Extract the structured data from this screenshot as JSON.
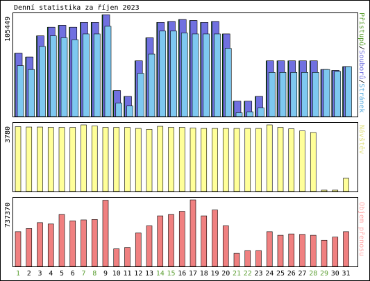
{
  "title": "Denní statistika za říjen 2023",
  "chart_data": [
    {
      "type": "bar",
      "panel": "top",
      "axis_max_label": "105449",
      "right_labels": [
        {
          "text": "Přístupů",
          "color": "#5a9e30"
        },
        {
          "text": "/",
          "color": "#000000"
        },
        {
          "text": "Souborů",
          "color": "#7070e0"
        },
        {
          "text": "/",
          "color": "#000000"
        },
        {
          "text": "Stránek",
          "color": "#55aadd"
        }
      ],
      "ymax": 105449,
      "categories": [
        "1",
        "2",
        "3",
        "4",
        "5",
        "6",
        "7",
        "8",
        "9",
        "10",
        "11",
        "12",
        "13",
        "14",
        "15",
        "16",
        "17",
        "18",
        "19",
        "20",
        "21",
        "22",
        "23",
        "24",
        "25",
        "26",
        "27",
        "28",
        "29",
        "30",
        "31"
      ],
      "series": [
        {
          "name": "Přístupů",
          "color": "#008000",
          "values": [
            66000,
            62000,
            84000,
            93000,
            95000,
            93000,
            98000,
            98000,
            106000,
            27000,
            21000,
            58000,
            82000,
            98000,
            99000,
            101000,
            100000,
            98000,
            99000,
            86000,
            16000,
            16000,
            21000,
            58000,
            58000,
            58000,
            58000,
            58000,
            49000,
            48000,
            52000
          ]
        },
        {
          "name": "Souborů",
          "color": "#7070e0",
          "values": [
            66000,
            62000,
            84000,
            93000,
            95000,
            93000,
            98000,
            98000,
            106000,
            27000,
            21000,
            58000,
            82000,
            98000,
            99000,
            101000,
            100000,
            98000,
            99000,
            86000,
            16000,
            16000,
            21000,
            58000,
            58000,
            58000,
            58000,
            58000,
            49000,
            48000,
            52000
          ]
        },
        {
          "name": "Stránek",
          "color": "#7ec8f0",
          "values": [
            53000,
            49000,
            73000,
            84000,
            82000,
            80000,
            86000,
            86000,
            94000,
            14000,
            11000,
            45000,
            65000,
            89000,
            89000,
            87000,
            86000,
            86000,
            86000,
            71000,
            4000,
            5000,
            9000,
            46000,
            46000,
            46000,
            46000,
            46000,
            49000,
            47000,
            52000
          ]
        }
      ]
    },
    {
      "type": "bar",
      "panel": "middle",
      "axis_max_label": "3780",
      "right_labels": [
        {
          "text": "Návštěv",
          "color": "#e0e080"
        }
      ],
      "ymax": 3780,
      "categories": [
        "1",
        "2",
        "3",
        "4",
        "5",
        "6",
        "7",
        "8",
        "9",
        "10",
        "11",
        "12",
        "13",
        "14",
        "15",
        "16",
        "17",
        "18",
        "19",
        "20",
        "21",
        "22",
        "23",
        "24",
        "25",
        "26",
        "27",
        "28",
        "29",
        "30",
        "31"
      ],
      "series": [
        {
          "name": "Návštěv",
          "color": "#ffff99",
          "values": [
            3680,
            3660,
            3660,
            3640,
            3640,
            3640,
            3780,
            3720,
            3640,
            3640,
            3640,
            3580,
            3530,
            3700,
            3640,
            3640,
            3600,
            3580,
            3580,
            3580,
            3580,
            3580,
            3580,
            3780,
            3640,
            3560,
            3440,
            3350,
            80,
            80,
            750
          ]
        }
      ]
    },
    {
      "type": "bar",
      "panel": "bottom",
      "axis_max_label": "737370",
      "right_labels": [
        {
          "text": "Objem přenosu",
          "color": "#ffaaaa"
        }
      ],
      "ymax": 737370,
      "categories": [
        "1",
        "2",
        "3",
        "4",
        "5",
        "6",
        "7",
        "8",
        "9",
        "10",
        "11",
        "12",
        "13",
        "14",
        "15",
        "16",
        "17",
        "18",
        "19",
        "20",
        "21",
        "22",
        "23",
        "24",
        "25",
        "26",
        "27",
        "28",
        "29",
        "30",
        "31"
      ],
      "series": [
        {
          "name": "Objem přenosu",
          "color": "#f08080",
          "values": [
            385000,
            420000,
            485000,
            470000,
            575000,
            505000,
            515000,
            520000,
            733000,
            195000,
            210000,
            370000,
            450000,
            560000,
            575000,
            610000,
            737000,
            560000,
            625000,
            450000,
            145000,
            175000,
            175000,
            385000,
            345000,
            360000,
            355000,
            345000,
            290000,
            325000,
            385000
          ]
        }
      ]
    }
  ],
  "x_labels": [
    {
      "text": "1",
      "color": "#5a9e30"
    },
    {
      "text": "2",
      "color": "#000000"
    },
    {
      "text": "3",
      "color": "#000000"
    },
    {
      "text": "4",
      "color": "#000000"
    },
    {
      "text": "5",
      "color": "#000000"
    },
    {
      "text": "6",
      "color": "#000000"
    },
    {
      "text": "7",
      "color": "#5a9e30"
    },
    {
      "text": "8",
      "color": "#5a9e30"
    },
    {
      "text": "9",
      "color": "#000000"
    },
    {
      "text": "10",
      "color": "#000000"
    },
    {
      "text": "11",
      "color": "#000000"
    },
    {
      "text": "12",
      "color": "#000000"
    },
    {
      "text": "13",
      "color": "#000000"
    },
    {
      "text": "14",
      "color": "#5a9e30"
    },
    {
      "text": "15",
      "color": "#5a9e30"
    },
    {
      "text": "16",
      "color": "#000000"
    },
    {
      "text": "17",
      "color": "#000000"
    },
    {
      "text": "18",
      "color": "#000000"
    },
    {
      "text": "19",
      "color": "#000000"
    },
    {
      "text": "20",
      "color": "#000000"
    },
    {
      "text": "21",
      "color": "#5a9e30"
    },
    {
      "text": "22",
      "color": "#5a9e30"
    },
    {
      "text": "23",
      "color": "#000000"
    },
    {
      "text": "24",
      "color": "#000000"
    },
    {
      "text": "25",
      "color": "#000000"
    },
    {
      "text": "26",
      "color": "#000000"
    },
    {
      "text": "27",
      "color": "#000000"
    },
    {
      "text": "28",
      "color": "#5a9e30"
    },
    {
      "text": "29",
      "color": "#5a9e30"
    },
    {
      "text": "30",
      "color": "#000000"
    },
    {
      "text": "31",
      "color": "#000000"
    }
  ]
}
